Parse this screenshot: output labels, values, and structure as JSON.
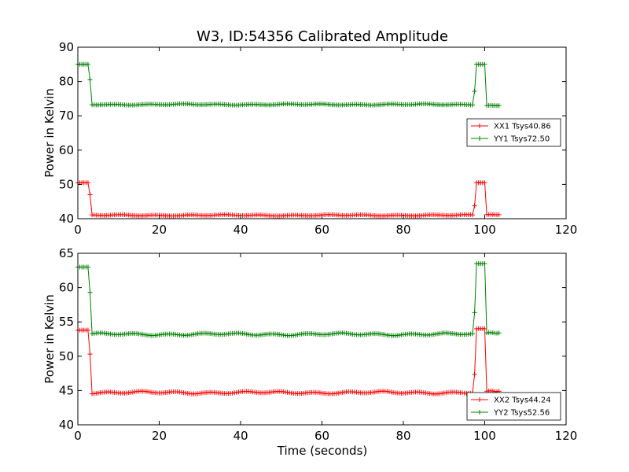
{
  "chart_data": [
    {
      "type": "line",
      "title": "W3, ID:54356 Calibrated Amplitude",
      "xlabel": "",
      "ylabel": "Power in Kelvin",
      "xlim": [
        0,
        120
      ],
      "ylim": [
        40,
        90
      ],
      "xticks": [
        "0",
        "20",
        "40",
        "60",
        "80",
        "100",
        "120"
      ],
      "yticks": [
        "40",
        "50",
        "60",
        "70",
        "80",
        "90"
      ],
      "grid": false,
      "legend_position": "right",
      "marker": "+",
      "series": [
        {
          "name": "XX1 Tsys40.86",
          "color": "#ff0000",
          "levels": {
            "high_start": 50.5,
            "transition": 47.0,
            "baseline": 41.0,
            "high_end": 50.5,
            "after": 41.2
          }
        },
        {
          "name": "YY1 Tsys72.50",
          "color": "#008000",
          "levels": {
            "high_start": 85.0,
            "transition": 80.5,
            "baseline": 73.3,
            "high_end": 85.0,
            "after": 73.0
          }
        }
      ]
    },
    {
      "type": "line",
      "title": "",
      "xlabel": "Time (seconds)",
      "ylabel": "Power in Kelvin",
      "xlim": [
        0,
        120
      ],
      "ylim": [
        40,
        65
      ],
      "xticks": [
        "0",
        "20",
        "40",
        "60",
        "80",
        "100",
        "120"
      ],
      "yticks": [
        "40",
        "45",
        "50",
        "55",
        "60",
        "65"
      ],
      "grid": false,
      "legend_position": "bottom-right",
      "marker": "+",
      "series": [
        {
          "name": "XX2 Tsys44.24",
          "color": "#ff0000",
          "levels": {
            "high_start": 53.8,
            "transition": 50.3,
            "baseline": 44.7,
            "high_end": 54.0,
            "after": 44.9
          }
        },
        {
          "name": "YY2 Tsys52.56",
          "color": "#008000",
          "levels": {
            "high_start": 63.0,
            "transition": 59.3,
            "baseline": 53.2,
            "high_end": 63.5,
            "after": 53.4
          }
        }
      ]
    }
  ]
}
